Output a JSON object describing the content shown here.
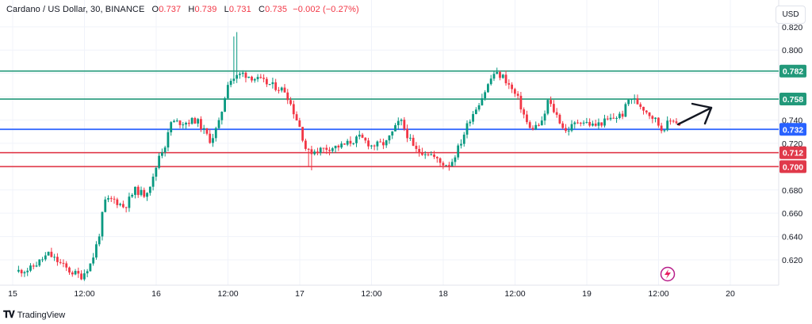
{
  "header": {
    "symbol": "Cardano / US Dollar, 30, BINANCE",
    "open_label": "O",
    "open": "0.737",
    "high_label": "H",
    "high": "0.739",
    "low_label": "L",
    "low": "0.731",
    "close_label": "C",
    "close": "0.735",
    "change": "−0.002 (−0.27%)"
  },
  "currency_button": "USD",
  "footer": {
    "brand": "TradingView",
    "logo": "tv-logo-icon"
  },
  "colors": {
    "up": "#089981",
    "down": "#f23645",
    "resistance": "#22997a",
    "support": "#e0394a",
    "current": "#2962ff",
    "accent": "#e91e63"
  },
  "chart_data": {
    "type": "candlestick",
    "ylim": [
      0.605,
      0.826
    ],
    "y_ticks": [
      "0.820",
      "0.800",
      "0.740",
      "0.720",
      "0.680",
      "0.660",
      "0.640",
      "0.620"
    ],
    "x_ticks": [
      {
        "label": "15",
        "t": 0
      },
      {
        "label": "12:00",
        "t": 0.5
      },
      {
        "label": "16",
        "t": 1
      },
      {
        "label": "12:00",
        "t": 1.5
      },
      {
        "label": "17",
        "t": 2
      },
      {
        "label": "12:00",
        "t": 2.5
      },
      {
        "label": "18",
        "t": 3
      },
      {
        "label": "12:00",
        "t": 3.5
      },
      {
        "label": "19",
        "t": 4
      },
      {
        "label": "12:00",
        "t": 4.5
      },
      {
        "label": "20",
        "t": 5
      }
    ],
    "levels": [
      {
        "value": 0.782,
        "label": "0.782",
        "kind": "resistance"
      },
      {
        "value": 0.758,
        "label": "0.758",
        "kind": "resistance"
      },
      {
        "value": 0.732,
        "label": "0.732",
        "kind": "current"
      },
      {
        "value": 0.712,
        "label": "0.712",
        "kind": "support"
      },
      {
        "value": 0.7,
        "label": "0.700",
        "kind": "support"
      }
    ],
    "path": [
      [
        0.02,
        0.61
      ],
      [
        0.12,
        0.612
      ],
      [
        0.25,
        0.625
      ],
      [
        0.4,
        0.61
      ],
      [
        0.48,
        0.606
      ],
      [
        0.55,
        0.618
      ],
      [
        0.6,
        0.64
      ],
      [
        0.64,
        0.67
      ],
      [
        0.7,
        0.672
      ],
      [
        0.78,
        0.665
      ],
      [
        0.85,
        0.68
      ],
      [
        0.92,
        0.676
      ],
      [
        0.98,
        0.69
      ],
      [
        1.02,
        0.71
      ],
      [
        1.07,
        0.72
      ],
      [
        1.1,
        0.738
      ],
      [
        1.2,
        0.738
      ],
      [
        1.28,
        0.74
      ],
      [
        1.38,
        0.722
      ],
      [
        1.44,
        0.738
      ],
      [
        1.5,
        0.773
      ],
      [
        1.6,
        0.78
      ],
      [
        1.7,
        0.775
      ],
      [
        1.8,
        0.77
      ],
      [
        1.9,
        0.765
      ],
      [
        2.0,
        0.734
      ],
      [
        2.05,
        0.712
      ],
      [
        2.15,
        0.715
      ],
      [
        2.3,
        0.718
      ],
      [
        2.42,
        0.725
      ],
      [
        2.5,
        0.718
      ],
      [
        2.6,
        0.72
      ],
      [
        2.7,
        0.74
      ],
      [
        2.8,
        0.714
      ],
      [
        2.9,
        0.712
      ],
      [
        2.98,
        0.703
      ],
      [
        3.05,
        0.702
      ],
      [
        3.12,
        0.72
      ],
      [
        3.18,
        0.74
      ],
      [
        3.28,
        0.762
      ],
      [
        3.35,
        0.78
      ],
      [
        3.42,
        0.777
      ],
      [
        3.52,
        0.758
      ],
      [
        3.6,
        0.732
      ],
      [
        3.7,
        0.738
      ],
      [
        3.72,
        0.758
      ],
      [
        3.8,
        0.742
      ],
      [
        3.85,
        0.73
      ],
      [
        3.95,
        0.74
      ],
      [
        4.05,
        0.735
      ],
      [
        4.15,
        0.74
      ],
      [
        4.25,
        0.745
      ],
      [
        4.3,
        0.76
      ],
      [
        4.38,
        0.752
      ],
      [
        4.48,
        0.74
      ],
      [
        4.52,
        0.732
      ],
      [
        4.6,
        0.741
      ],
      [
        4.64,
        0.737
      ],
      [
        4.66,
        0.735
      ]
    ],
    "annotation": "arrow-up-right-icon"
  }
}
